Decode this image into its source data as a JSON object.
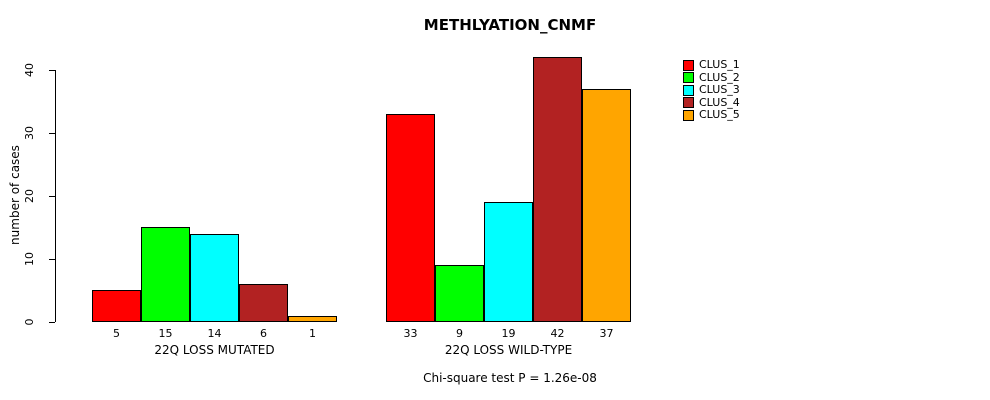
{
  "title": "METHLYATION_CNMF",
  "caption": "Chi-square test P = 1.26e-08",
  "chart_data": {
    "type": "bar",
    "title": "METHLYATION_CNMF",
    "xlabel": "",
    "ylabel": "number of cases",
    "ylim": [
      0,
      42
    ],
    "yticks": [
      0,
      10,
      20,
      30,
      40
    ],
    "grid": false,
    "legend_position": "right",
    "series_names": [
      "CLUS_1",
      "CLUS_2",
      "CLUS_3",
      "CLUS_4",
      "CLUS_5"
    ],
    "colors": [
      "#ff0000",
      "#00ff00",
      "#00ffff",
      "#b22222",
      "#ffa500"
    ],
    "groups": [
      {
        "label": "22Q LOSS MUTATED",
        "values": [
          5,
          15,
          14,
          6,
          1
        ]
      },
      {
        "label": "22Q LOSS WILD-TYPE",
        "values": [
          33,
          9,
          19,
          42,
          37
        ]
      }
    ],
    "annotation": "Chi-square test P = 1.26e-08"
  }
}
